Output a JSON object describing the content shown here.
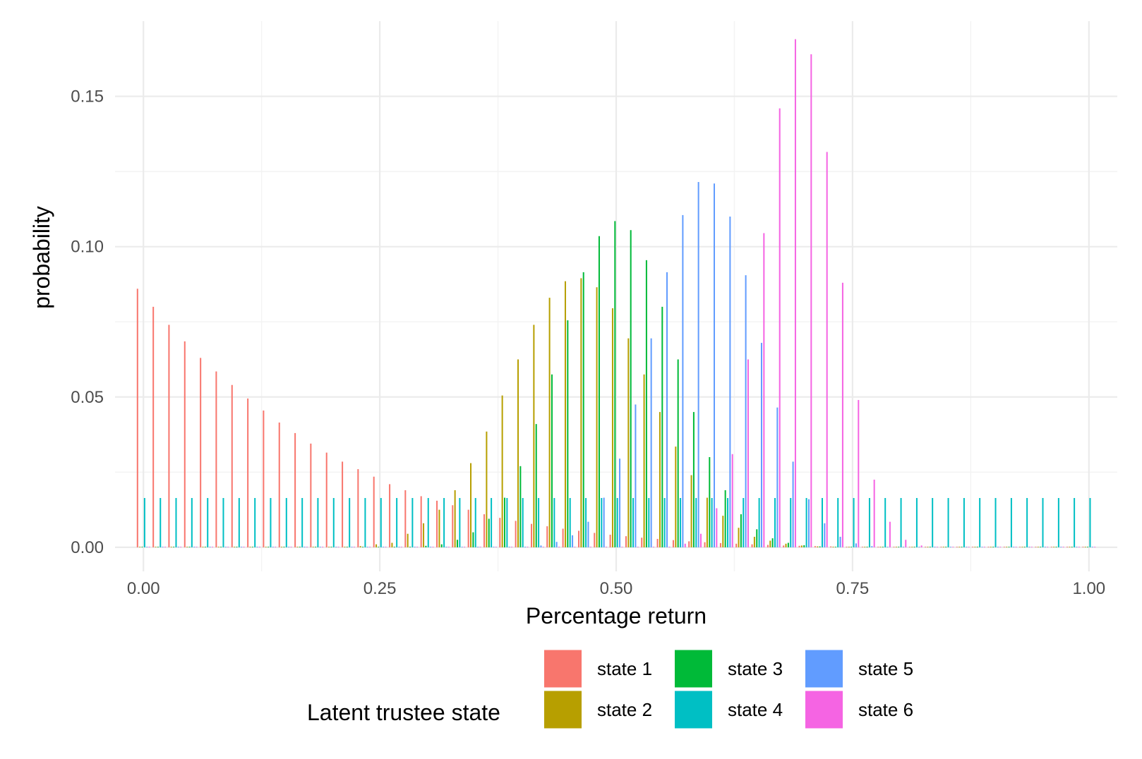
{
  "chart_data": {
    "type": "bar",
    "title": "",
    "xlabel": "Percentage return",
    "ylabel": "probability",
    "xlim": [
      -0.03,
      1.03
    ],
    "ylim": [
      -0.008,
      0.175
    ],
    "x_ticks": [
      "0.00",
      "0.25",
      "0.50",
      "0.75",
      "1.00"
    ],
    "x_tick_values": [
      0,
      0.25,
      0.5,
      0.75,
      1.0
    ],
    "y_ticks": [
      "0.00",
      "0.05",
      "0.10",
      "0.15"
    ],
    "y_tick_values": [
      0,
      0.05,
      0.1,
      0.15
    ],
    "x": [
      0.0,
      0.0167,
      0.0333,
      0.05,
      0.0667,
      0.0833,
      0.1,
      0.1167,
      0.1333,
      0.15,
      0.1667,
      0.1833,
      0.2,
      0.2167,
      0.2333,
      0.25,
      0.2667,
      0.2833,
      0.3,
      0.3167,
      0.3333,
      0.35,
      0.3667,
      0.3833,
      0.4,
      0.4167,
      0.4333,
      0.45,
      0.4667,
      0.4833,
      0.5,
      0.5167,
      0.5333,
      0.55,
      0.5667,
      0.5833,
      0.6,
      0.6167,
      0.6333,
      0.65,
      0.6667,
      0.6833,
      0.7,
      0.7167,
      0.7333,
      0.75,
      0.7667,
      0.7833,
      0.8,
      0.8167,
      0.8333,
      0.85,
      0.8667,
      0.8833,
      0.9,
      0.9167,
      0.9333,
      0.95,
      0.9667,
      0.9833,
      1.0
    ],
    "series": [
      {
        "name": "state 1",
        "color": "#F8766D",
        "values": [
          0.086,
          0.08,
          0.074,
          0.0685,
          0.063,
          0.0585,
          0.054,
          0.0495,
          0.0455,
          0.0415,
          0.038,
          0.0345,
          0.0315,
          0.0285,
          0.026,
          0.0235,
          0.021,
          0.019,
          0.017,
          0.0155,
          0.014,
          0.0125,
          0.011,
          0.0098,
          0.0088,
          0.0078,
          0.007,
          0.0062,
          0.0055,
          0.0048,
          0.0042,
          0.0037,
          0.0032,
          0.0028,
          0.0024,
          0.002,
          0.0017,
          0.0014,
          0.0012,
          0.001,
          0.0008,
          0.0006,
          0.0005,
          0.0004,
          0.0003,
          0.0002,
          0.0001,
          0.0001,
          0.0001,
          0,
          0,
          0,
          0,
          0,
          0,
          0,
          0,
          0,
          0,
          0,
          0
        ]
      },
      {
        "name": "state 2",
        "color": "#B79F00",
        "values": [
          0,
          0,
          0,
          0,
          0,
          0,
          0,
          0,
          0,
          0,
          0,
          0,
          0,
          0.0002,
          0.0004,
          0.001,
          0.0015,
          0.0045,
          0.008,
          0.0125,
          0.019,
          0.028,
          0.0385,
          0.0505,
          0.0625,
          0.074,
          0.083,
          0.0885,
          0.0895,
          0.0865,
          0.0795,
          0.0695,
          0.0575,
          0.045,
          0.0335,
          0.024,
          0.0165,
          0.0105,
          0.0065,
          0.0035,
          0.0022,
          0.0012,
          0.0006,
          0.0003,
          0.0002,
          0.0001,
          0.0001,
          0,
          0,
          0,
          0,
          0,
          0,
          0,
          0,
          0,
          0,
          0,
          0,
          0,
          0
        ]
      },
      {
        "name": "state 3",
        "color": "#00BA38",
        "values": [
          0,
          0,
          0,
          0,
          0,
          0,
          0,
          0,
          0,
          0,
          0,
          0,
          0,
          0,
          0,
          0,
          0,
          0,
          0.0005,
          0.001,
          0.0025,
          0.005,
          0.0095,
          0.0165,
          0.027,
          0.041,
          0.0575,
          0.0755,
          0.0915,
          0.1035,
          0.1085,
          0.1055,
          0.0955,
          0.08,
          0.0625,
          0.045,
          0.03,
          0.019,
          0.011,
          0.006,
          0.003,
          0.0015,
          0.0007,
          0.0003,
          0.0001,
          0,
          0,
          0,
          0,
          0,
          0,
          0,
          0,
          0,
          0,
          0,
          0,
          0,
          0,
          0,
          0
        ]
      },
      {
        "name": "state 4",
        "color": "#00BFC4",
        "values": [
          0.0164,
          0.0164,
          0.0164,
          0.0164,
          0.0164,
          0.0164,
          0.0164,
          0.0164,
          0.0164,
          0.0164,
          0.0164,
          0.0164,
          0.0164,
          0.0164,
          0.0164,
          0.0164,
          0.0164,
          0.0164,
          0.0164,
          0.0164,
          0.0164,
          0.0164,
          0.0164,
          0.0164,
          0.0164,
          0.0164,
          0.0164,
          0.0164,
          0.0164,
          0.0164,
          0.0164,
          0.0164,
          0.0164,
          0.0164,
          0.0164,
          0.0164,
          0.0164,
          0.0164,
          0.0164,
          0.0164,
          0.0164,
          0.0164,
          0.0164,
          0.0164,
          0.0164,
          0.0164,
          0.0164,
          0.0164,
          0.0164,
          0.0164,
          0.0164,
          0.0164,
          0.0164,
          0.0164,
          0.0164,
          0.0164,
          0.0164,
          0.0164,
          0.0164,
          0.0164,
          0.0164
        ]
      },
      {
        "name": "state 5",
        "color": "#619CFF",
        "values": [
          0,
          0,
          0,
          0,
          0,
          0,
          0,
          0,
          0,
          0,
          0,
          0,
          0,
          0,
          0,
          0,
          0,
          0,
          0,
          0,
          0,
          0,
          0,
          0,
          0.0002,
          0.0006,
          0.0018,
          0.004,
          0.0085,
          0.0165,
          0.0295,
          0.0475,
          0.0695,
          0.0915,
          0.1105,
          0.1215,
          0.121,
          0.11,
          0.0905,
          0.068,
          0.0465,
          0.0285,
          0.016,
          0.008,
          0.0035,
          0.0013,
          0.0004,
          0.0001,
          0,
          0,
          0,
          0,
          0,
          0,
          0,
          0,
          0,
          0,
          0,
          0,
          0
        ]
      },
      {
        "name": "state 6",
        "color": "#F564E3",
        "values": [
          0,
          0,
          0,
          0,
          0,
          0,
          0,
          0,
          0,
          0,
          0,
          0,
          0,
          0,
          0,
          0,
          0,
          0,
          0,
          0,
          0,
          0,
          0,
          0,
          0,
          0,
          0,
          0,
          0,
          0,
          0,
          0,
          0,
          0.0002,
          0.0012,
          0.0045,
          0.013,
          0.031,
          0.0625,
          0.1045,
          0.146,
          0.169,
          0.164,
          0.1315,
          0.088,
          0.049,
          0.0225,
          0.0085,
          0.0025,
          0.0006,
          0.0001,
          0,
          0,
          0,
          0,
          0,
          0,
          0,
          0,
          0,
          0
        ]
      }
    ],
    "legend": {
      "title": "Latent trustee state",
      "position": "bottom",
      "entries": [
        "state 1",
        "state 2",
        "state 3",
        "state 4",
        "state 5",
        "state 6"
      ]
    }
  }
}
